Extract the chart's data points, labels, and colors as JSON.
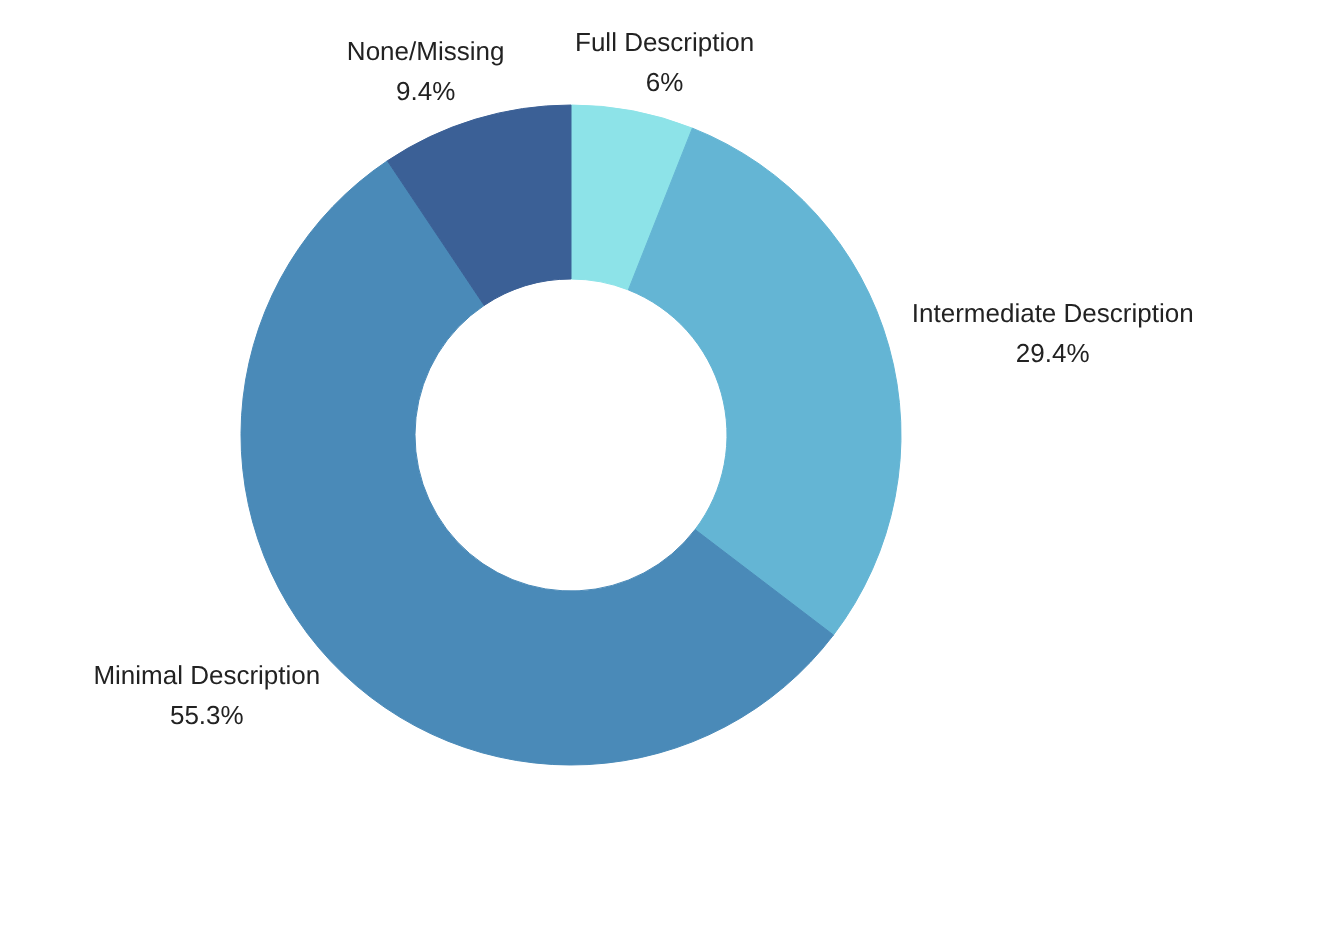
{
  "chart_data": {
    "type": "donut",
    "categories": [
      "Full Description",
      "Intermediate Description",
      "Minimal Description",
      "None/Missing"
    ],
    "values": [
      6,
      29.4,
      55.3,
      9.4
    ],
    "colors": [
      "#8de3e8",
      "#64b5d4",
      "#4a8ab8",
      "#3b6096"
    ],
    "value_labels": [
      "6%",
      "29.4%",
      "55.3%",
      "9.4%"
    ]
  }
}
